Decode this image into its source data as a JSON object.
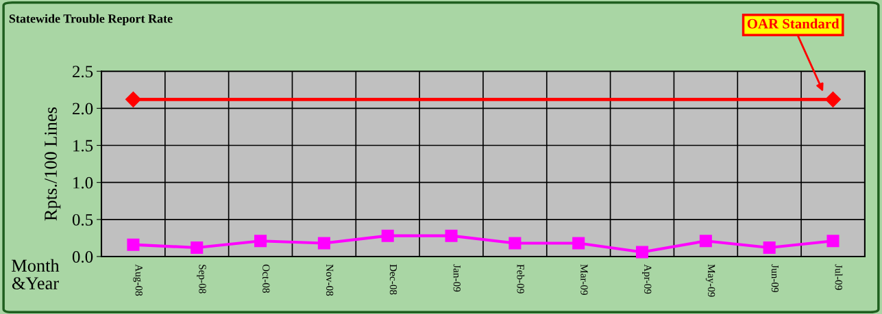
{
  "chart_data": {
    "type": "line",
    "title": "Statewide Trouble Report Rate",
    "ylabel": "Rpts./100 Lines",
    "categories": [
      "Aug-08",
      "Sep-08",
      "Oct-08",
      "Nov-08",
      "Dec-08",
      "Jan-09",
      "Feb-09",
      "Mar-09",
      "Apr-09",
      "May-09",
      "Jun-09",
      "Jul-09"
    ],
    "series": [
      {
        "color": "#ff00ff",
        "marker": "square",
        "values": [
          0.16,
          0.12,
          0.21,
          0.18,
          0.28,
          0.28,
          0.18,
          0.18,
          0.06,
          0.21,
          0.12,
          0.21
        ]
      },
      {
        "name": "OAR Standard",
        "color": "#ff0000",
        "marker": "none",
        "values": [
          2.12,
          2.12,
          2.12,
          2.12,
          2.12,
          2.12,
          2.12,
          2.12,
          2.12,
          2.12,
          2.12,
          2.12
        ]
      }
    ],
    "line_style": "solid",
    "ylim": [
      0,
      2.5
    ],
    "yticks": [
      {
        "value": 0,
        "label": "0.0"
      },
      {
        "value": 0.5,
        "label": "0.5"
      },
      {
        "value": 1,
        "label": "1.0"
      },
      {
        "value": 1.5,
        "label": "1.5"
      },
      {
        "value": 2,
        "label": "2.0"
      },
      {
        "value": 2.5,
        "label": "2.5"
      }
    ],
    "grid": true,
    "annotations": [
      "Month\n&Year"
    ]
  }
}
